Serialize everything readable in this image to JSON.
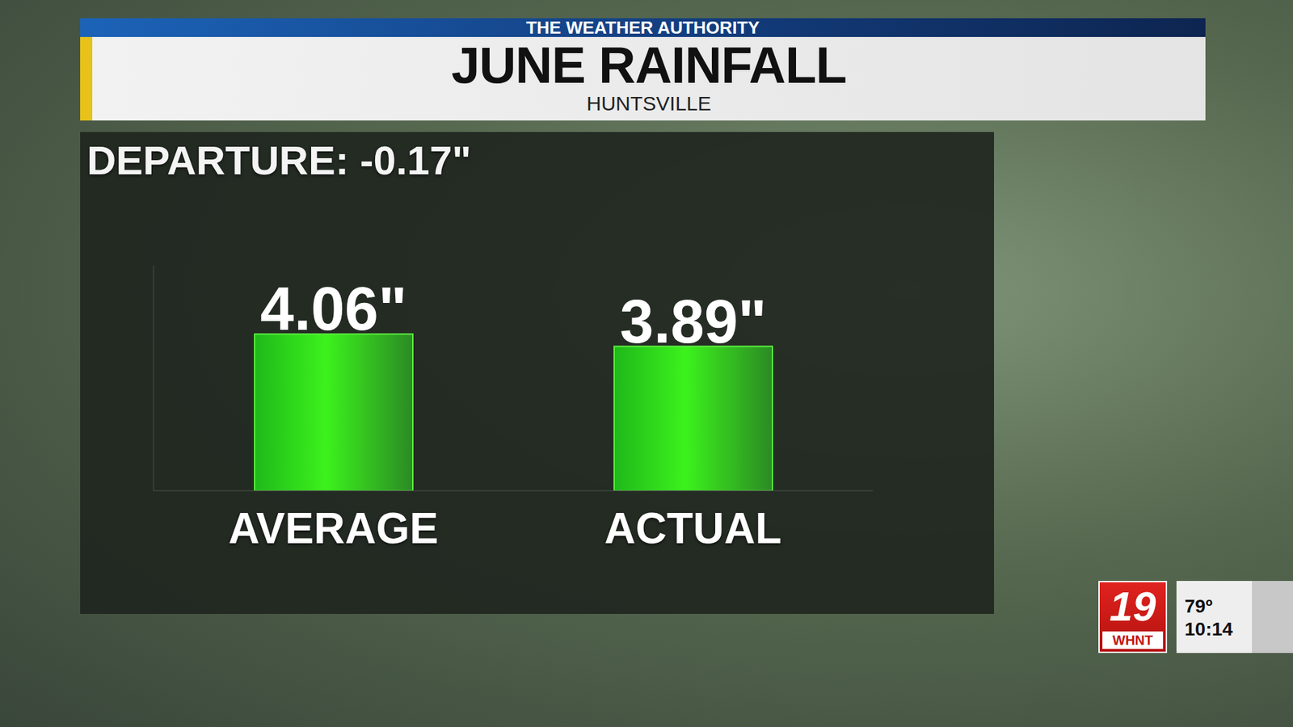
{
  "chart_data": {
    "type": "bar",
    "header": "THE WEATHER AUTHORITY",
    "title": "JUNE RAINFALL",
    "subtitle": "HUNTSVILLE",
    "annotation": "DEPARTURE: -0.17\"",
    "categories": [
      "AVERAGE",
      "ACTUAL"
    ],
    "values": [
      4.06,
      3.89
    ],
    "value_labels": [
      "4.06\"",
      "3.89\""
    ],
    "color": "#3cf21c",
    "ylim": [
      1.9,
      5.0
    ],
    "yticks": [],
    "data_labels": true,
    "tick_labels": "x",
    "grid": false
  },
  "overlay": {
    "logo": "19",
    "station": "WHNT",
    "temperature": "79º",
    "time": "10:14"
  }
}
